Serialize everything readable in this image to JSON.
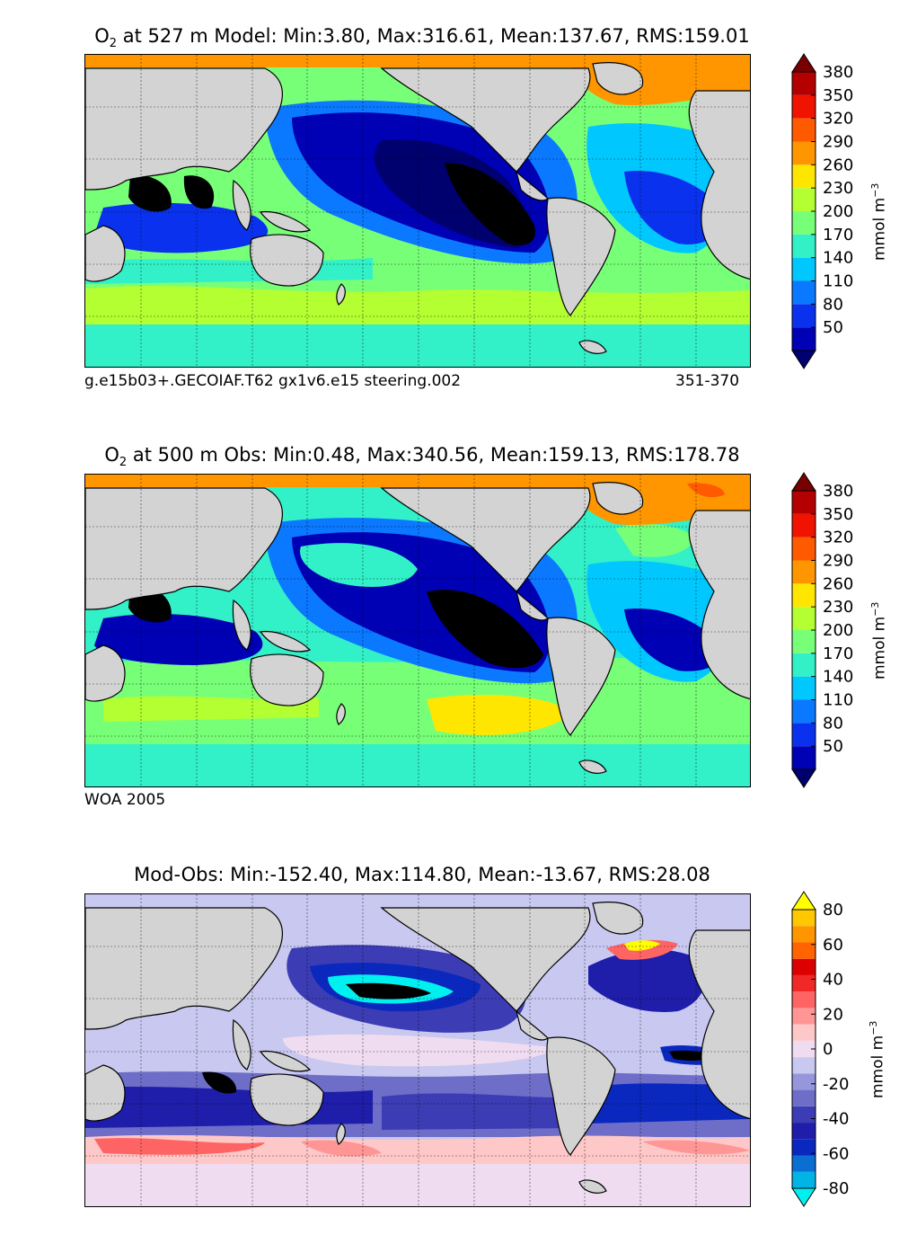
{
  "panels": [
    {
      "id": "model",
      "title_prefix": "O",
      "title_sub": "2",
      "title_rest": " at 527 m Model: Min:3.80, Max:316.61, Mean:137.67, RMS:159.01",
      "caption_left": "g.e15b03+.GECOIAF.T62 gx1v6.e15 steering.002",
      "caption_right": "351-370",
      "colorbar": {
        "unit_prefix": "mmol m",
        "unit_sup": "−3",
        "ticks": [
          "50",
          "80",
          "110",
          "140",
          "170",
          "200",
          "230",
          "260",
          "290",
          "320",
          "350",
          "380"
        ],
        "colors": [
          "#00006e",
          "#0000b4",
          "#0a32ee",
          "#0a78ff",
          "#00c8ff",
          "#32f0c8",
          "#78ff78",
          "#b4ff32",
          "#ffe600",
          "#ff9600",
          "#ff5a00",
          "#f01400",
          "#b40000",
          "#780000"
        ]
      }
    },
    {
      "id": "obs",
      "title_prefix": "O",
      "title_sub": "2",
      "title_rest": " at 500 m Obs: Min:0.48, Max:340.56, Mean:159.13, RMS:178.78",
      "caption_left": "WOA 2005",
      "caption_right": "",
      "colorbar": {
        "unit_prefix": "mmol m",
        "unit_sup": "−3",
        "ticks": [
          "50",
          "80",
          "110",
          "140",
          "170",
          "200",
          "230",
          "260",
          "290",
          "320",
          "350",
          "380"
        ],
        "colors": [
          "#00006e",
          "#0000b4",
          "#0a32ee",
          "#0a78ff",
          "#00c8ff",
          "#32f0c8",
          "#78ff78",
          "#b4ff32",
          "#ffe600",
          "#ff9600",
          "#ff5a00",
          "#f01400",
          "#b40000",
          "#780000"
        ]
      }
    },
    {
      "id": "diff",
      "title_prefix": "",
      "title_sub": "",
      "title_rest": "Mod-Obs: Min:-152.40, Max:114.80, Mean:-13.67, RMS:28.08",
      "caption_left": "",
      "caption_right": "",
      "colorbar": {
        "unit_prefix": "mmol m",
        "unit_sup": "−3",
        "ticks": [
          "-80",
          "-60",
          "-40",
          "-20",
          "0",
          "20",
          "40",
          "60",
          "80"
        ],
        "colors": [
          "#00f0f0",
          "#00b4e6",
          "#0a6ed2",
          "#0a28be",
          "#1e1eaa",
          "#3c3cb4",
          "#6e6ec8",
          "#9696dc",
          "#c8c8f0",
          "#f0dcf0",
          "#ffc8c8",
          "#ff9696",
          "#ff6464",
          "#f02828",
          "#dc0000",
          "#ff6400",
          "#ff9600",
          "#ffc800",
          "#ffff00"
        ]
      }
    }
  ],
  "colors": {
    "land": "#d3d3d3",
    "ice_white": "#ffffff",
    "coast": "#000000"
  }
}
